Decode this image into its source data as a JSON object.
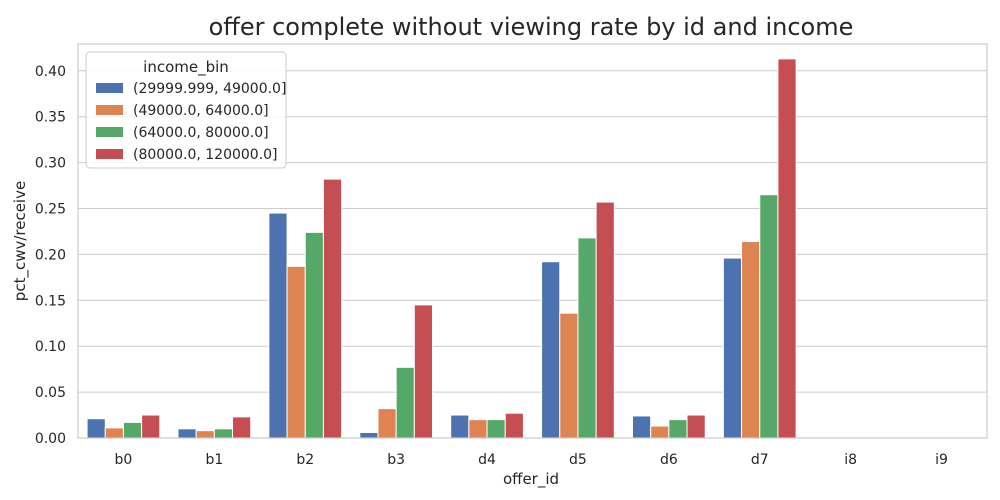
{
  "chart_data": {
    "type": "bar",
    "title": "offer complete without viewing rate by id and income",
    "xlabel": "offer_id",
    "ylabel": "pct_cwv/receive",
    "categories": [
      "b0",
      "b1",
      "b2",
      "b3",
      "d4",
      "d5",
      "d6",
      "d7",
      "i8",
      "i9"
    ],
    "ylim": [
      0,
      0.42
    ],
    "yticks": [
      "0.00",
      "0.05",
      "0.10",
      "0.15",
      "0.20",
      "0.25",
      "0.30",
      "0.35",
      "0.40"
    ],
    "grid": true,
    "legend": {
      "title": "income_bin",
      "placement": "top-left"
    },
    "series": [
      {
        "name": "(29999.999, 49000.0]",
        "color": "#4c72b0",
        "values": [
          0.021,
          0.01,
          0.245,
          0.006,
          0.025,
          0.192,
          0.024,
          0.196,
          0,
          0
        ]
      },
      {
        "name": "(49000.0, 64000.0]",
        "color": "#dd8452",
        "values": [
          0.011,
          0.008,
          0.187,
          0.032,
          0.02,
          0.136,
          0.013,
          0.214,
          0,
          0
        ]
      },
      {
        "name": "(64000.0, 80000.0]",
        "color": "#55a868",
        "values": [
          0.017,
          0.01,
          0.224,
          0.077,
          0.02,
          0.218,
          0.02,
          0.265,
          0,
          0
        ]
      },
      {
        "name": "(80000.0, 120000.0]",
        "color": "#c44e52",
        "values": [
          0.025,
          0.023,
          0.282,
          0.145,
          0.027,
          0.257,
          0.025,
          0.413,
          0,
          0
        ]
      }
    ]
  }
}
